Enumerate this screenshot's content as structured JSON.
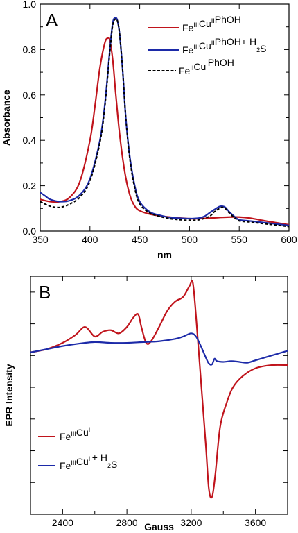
{
  "chart_data": [
    {
      "type": "line",
      "panel_label": "A",
      "xlabel": "nm",
      "ylabel": "Absorbance",
      "xlim": [
        350,
        600
      ],
      "ylim": [
        0,
        1.0
      ],
      "x_ticks": [
        350,
        400,
        450,
        500,
        550,
        600
      ],
      "y_ticks": [
        0.0,
        0.2,
        0.4,
        0.6,
        0.8,
        1.0
      ],
      "y_tick_labels": [
        "0.0",
        "0.2",
        "0.4",
        "0.6",
        "0.8",
        "1.0"
      ],
      "grid": false,
      "legend_position": "top-right",
      "series": [
        {
          "name": "FeIIICuIIPhOH",
          "legend": {
            "base1": "Fe",
            "sup1": "III",
            "base2": "Cu",
            "sup2": "II",
            "base3": "PhOH"
          },
          "color": "#c0141c",
          "dash": "solid",
          "x": [
            350,
            360,
            370,
            380,
            390,
            400,
            405,
            410,
            415,
            418,
            420,
            423,
            426,
            430,
            435,
            440,
            445,
            450,
            460,
            470,
            480,
            490,
            500,
            510,
            520,
            530,
            540,
            550,
            560,
            570,
            580,
            590,
            600
          ],
          "y": [
            0.14,
            0.13,
            0.13,
            0.15,
            0.22,
            0.4,
            0.55,
            0.72,
            0.83,
            0.85,
            0.84,
            0.75,
            0.6,
            0.42,
            0.26,
            0.16,
            0.11,
            0.09,
            0.075,
            0.068,
            0.062,
            0.058,
            0.055,
            0.055,
            0.057,
            0.06,
            0.062,
            0.062,
            0.058,
            0.05,
            0.042,
            0.035,
            0.028
          ]
        },
        {
          "name": "FeIIICuIIPhOH+ H2S",
          "legend": {
            "base1": "Fe",
            "sup1": "III",
            "base2": "Cu",
            "sup2": "II",
            "base3": "PhOH+ H",
            "sub1": "2",
            "base4": "S"
          },
          "color": "#1c2aa8",
          "dash": "solid",
          "x": [
            350,
            355,
            360,
            370,
            380,
            390,
            400,
            410,
            415,
            420,
            423,
            426,
            428,
            430,
            433,
            436,
            440,
            445,
            450,
            460,
            470,
            480,
            490,
            500,
            510,
            515,
            520,
            525,
            530,
            533,
            536,
            540,
            545,
            550,
            560,
            570,
            580,
            590,
            600
          ],
          "y": [
            0.17,
            0.155,
            0.14,
            0.13,
            0.135,
            0.16,
            0.23,
            0.4,
            0.56,
            0.8,
            0.92,
            0.94,
            0.92,
            0.86,
            0.7,
            0.5,
            0.33,
            0.2,
            0.13,
            0.085,
            0.07,
            0.06,
            0.057,
            0.055,
            0.058,
            0.065,
            0.08,
            0.095,
            0.108,
            0.11,
            0.105,
            0.085,
            0.065,
            0.05,
            0.045,
            0.04,
            0.035,
            0.03,
            0.025
          ]
        },
        {
          "name": "FeIICuIPhOH",
          "legend": {
            "base1": "Fe",
            "sup1": "II",
            "base2": "Cu",
            "sup2": "I",
            "base3": "PhOH"
          },
          "color": "#000000",
          "dash": "dashed",
          "x": [
            350,
            360,
            370,
            380,
            390,
            400,
            410,
            415,
            420,
            423,
            426,
            428,
            430,
            433,
            436,
            440,
            445,
            450,
            460,
            470,
            480,
            490,
            500,
            510,
            520,
            525,
            530,
            533,
            536,
            540,
            545,
            550,
            560,
            570,
            580,
            590,
            600
          ],
          "y": [
            0.13,
            0.11,
            0.105,
            0.12,
            0.15,
            0.22,
            0.39,
            0.55,
            0.79,
            0.91,
            0.935,
            0.92,
            0.86,
            0.7,
            0.5,
            0.32,
            0.19,
            0.12,
            0.08,
            0.065,
            0.055,
            0.05,
            0.048,
            0.05,
            0.065,
            0.085,
            0.1,
            0.105,
            0.1,
            0.08,
            0.06,
            0.045,
            0.04,
            0.035,
            0.03,
            0.025,
            0.02
          ]
        }
      ]
    },
    {
      "type": "line",
      "panel_label": "B",
      "xlabel": "Gauss",
      "ylabel": "EPR Intensity",
      "xlim": [
        2200,
        3800
      ],
      "ylim": [
        -10,
        5
      ],
      "x_ticks": [
        2400,
        2800,
        3200,
        3600
      ],
      "x_tick_labels": [
        "2400",
        "2800",
        "3200",
        "3600"
      ],
      "y_ticks": [
        -10,
        -8,
        -6,
        -4,
        -2,
        0,
        2,
        4
      ],
      "y_tick_labels": false,
      "grid": false,
      "legend_position": "bottom-left",
      "series": [
        {
          "name": "FeIIICuII",
          "legend": {
            "base1": "Fe",
            "sup1": "III",
            "base2": "Cu",
            "sup2": "II"
          },
          "color": "#c0141c",
          "x": [
            2200,
            2300,
            2400,
            2480,
            2540,
            2600,
            2650,
            2700,
            2750,
            2800,
            2840,
            2870,
            2890,
            2920,
            2950,
            3000,
            3050,
            3100,
            3150,
            3190,
            3210,
            3230,
            3260,
            3290,
            3310,
            3330,
            3350,
            3380,
            3420,
            3460,
            3520,
            3600,
            3700,
            3800
          ],
          "y": [
            0.2,
            0.4,
            0.8,
            1.3,
            1.8,
            1.2,
            1.5,
            1.6,
            1.4,
            1.8,
            2.4,
            2.6,
            1.8,
            0.8,
            0.9,
            1.8,
            2.8,
            3.4,
            3.7,
            4.4,
            4.6,
            2.5,
            -1.5,
            -5.5,
            -8.4,
            -8.9,
            -7.5,
            -4.5,
            -3.0,
            -2.0,
            -1.3,
            -0.8,
            -0.6,
            -0.6
          ]
        },
        {
          "name": "FeIIICuII+ H2S",
          "legend": {
            "base1": "Fe",
            "sup1": "III",
            "base2": "Cu",
            "sup2": "II",
            "base3": "+ H",
            "sub1": "2",
            "base4": "S"
          },
          "color": "#1c2aa8",
          "x": [
            2200,
            2300,
            2400,
            2500,
            2600,
            2700,
            2800,
            2900,
            3000,
            3100,
            3150,
            3200,
            3230,
            3260,
            3290,
            3310,
            3330,
            3345,
            3360,
            3400,
            3450,
            3500,
            3550,
            3600,
            3700,
            3800
          ],
          "y": [
            0.2,
            0.4,
            0.6,
            0.75,
            0.85,
            0.8,
            0.8,
            0.85,
            0.9,
            1.05,
            1.2,
            1.4,
            1.2,
            0.6,
            -0.1,
            -0.5,
            -0.55,
            -0.2,
            -0.35,
            -0.4,
            -0.35,
            -0.4,
            -0.45,
            -0.3,
            0.0,
            0.3
          ]
        }
      ]
    }
  ]
}
